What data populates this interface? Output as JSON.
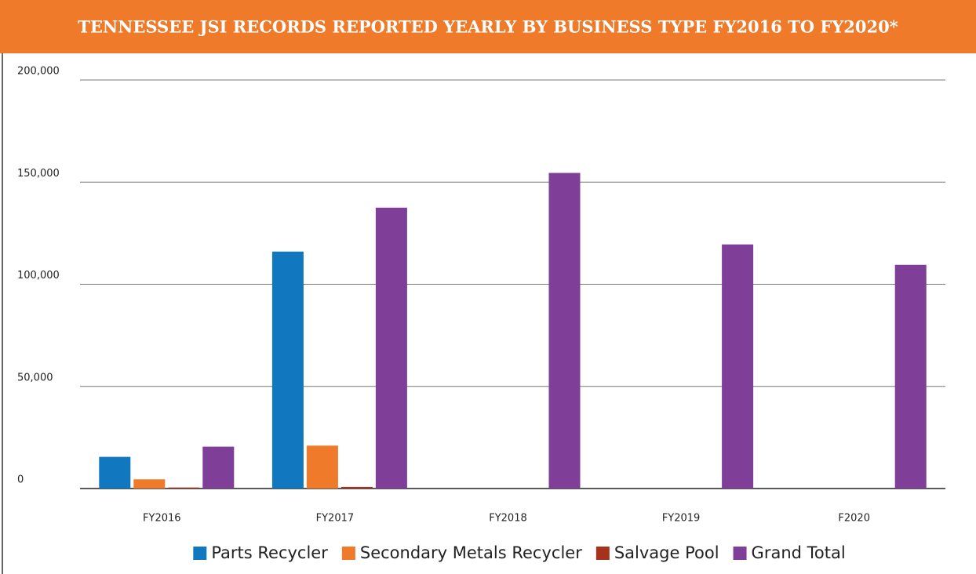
{
  "chart_data": {
    "type": "bar",
    "title": "TENNESSEE JSI RECORDS REPORTED YEARLY BY BUSINESS TYPE FY2016 TO FY2020*",
    "categories": [
      "FY2016",
      "FY2017",
      "FY2018",
      "FY2019",
      "F2020"
    ],
    "series": [
      {
        "name": "Parts Recycler",
        "color": "#1177bf",
        "values": [
          15500,
          116000,
          null,
          null,
          null
        ]
      },
      {
        "name": "Secondary Metals Recycler",
        "color": "#ee7a2a",
        "values": [
          4500,
          21000,
          null,
          null,
          null
        ]
      },
      {
        "name": "Salvage Pool",
        "color": "#a6321e",
        "values": [
          500,
          800,
          null,
          null,
          null
        ]
      },
      {
        "name": "Grand Total",
        "color": "#7f3f98",
        "values": [
          20500,
          137500,
          154500,
          119500,
          109500
        ]
      }
    ],
    "ylim": [
      0,
      200000
    ],
    "yticks": [
      0,
      {
        "value": 50000,
        "label": "50,000"
      },
      {
        "value": 100000,
        "label": "100,000"
      },
      {
        "value": 150000,
        "label": "150,000"
      },
      {
        "value": 200000,
        "label": "200,000"
      }
    ],
    "grid": true,
    "legend": "bottom"
  }
}
